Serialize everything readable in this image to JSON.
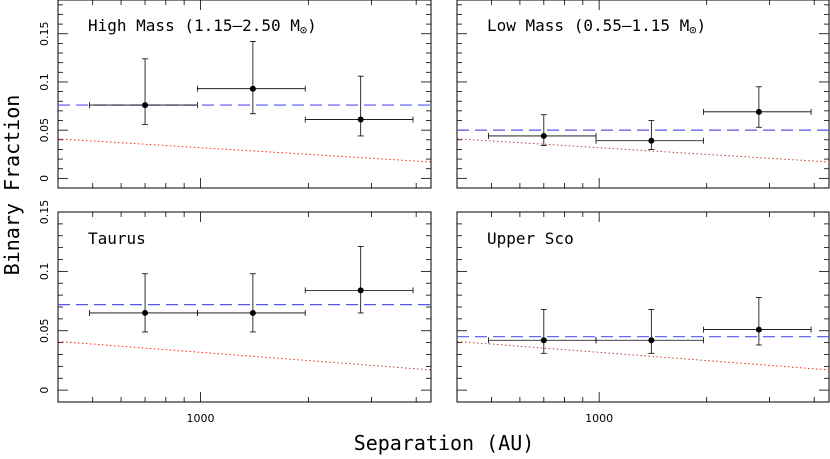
{
  "figure": {
    "xlabel": "Separation (AU)",
    "ylabel": "Binary Fraction"
  },
  "colors": {
    "mean_line": "#5555ee",
    "model_line": "#e03020",
    "points": "#000000"
  },
  "chart_data": [
    {
      "type": "scatter",
      "title": "High Mass (1.15–2.50 M",
      "title_symbol": "⊙",
      "title_close": ")",
      "x_scale": "log",
      "xlim": [
        400,
        4400
      ],
      "ylim": [
        -0.01,
        0.185
      ],
      "yticks": [
        0,
        0.05,
        0.1,
        0.15
      ],
      "ytick_labels": [
        "0",
        "0.05",
        "0.1",
        "0.15"
      ],
      "xticks": [
        1000
      ],
      "xtick_labels": [],
      "points": [
        {
          "x": 700,
          "xlo": 490,
          "xhi": 980,
          "y": 0.076,
          "ylo": 0.056,
          "yhi": 0.124
        },
        {
          "x": 1400,
          "xlo": 980,
          "xhi": 1960,
          "y": 0.093,
          "ylo": 0.067,
          "yhi": 0.142
        },
        {
          "x": 2800,
          "xlo": 1960,
          "xhi": 3920,
          "y": 0.061,
          "ylo": 0.044,
          "yhi": 0.106
        }
      ],
      "mean": 0.076,
      "model": [
        [
          400,
          0.041
        ],
        [
          4400,
          0.017
        ]
      ]
    },
    {
      "type": "scatter",
      "title": "Low Mass (0.55–1.15 M",
      "title_symbol": "⊙",
      "title_close": ")",
      "x_scale": "log",
      "xlim": [
        400,
        4400
      ],
      "ylim": [
        -0.01,
        0.185
      ],
      "yticks": [
        0,
        0.05,
        0.1,
        0.15
      ],
      "ytick_labels": [],
      "xticks": [
        1000
      ],
      "xtick_labels": [],
      "points": [
        {
          "x": 700,
          "xlo": 490,
          "xhi": 980,
          "y": 0.044,
          "ylo": 0.034,
          "yhi": 0.066
        },
        {
          "x": 1400,
          "xlo": 980,
          "xhi": 1960,
          "y": 0.039,
          "ylo": 0.03,
          "yhi": 0.06
        },
        {
          "x": 2800,
          "xlo": 1960,
          "xhi": 3920,
          "y": 0.069,
          "ylo": 0.053,
          "yhi": 0.095
        }
      ],
      "mean": 0.05,
      "model": [
        [
          400,
          0.041
        ],
        [
          4400,
          0.017
        ]
      ]
    },
    {
      "type": "scatter",
      "title": "Taurus",
      "x_scale": "log",
      "xlim": [
        400,
        4400
      ],
      "ylim": [
        -0.01,
        0.15
      ],
      "yticks": [
        0,
        0.05,
        0.1,
        0.15
      ],
      "ytick_labels": [
        "0",
        "0.05",
        "0.1",
        "0.15"
      ],
      "xticks": [
        1000
      ],
      "xtick_labels": [
        "1000"
      ],
      "points": [
        {
          "x": 700,
          "xlo": 490,
          "xhi": 980,
          "y": 0.065,
          "ylo": 0.049,
          "yhi": 0.098
        },
        {
          "x": 1400,
          "xlo": 980,
          "xhi": 1960,
          "y": 0.065,
          "ylo": 0.049,
          "yhi": 0.098
        },
        {
          "x": 2800,
          "xlo": 1960,
          "xhi": 3920,
          "y": 0.084,
          "ylo": 0.065,
          "yhi": 0.121
        }
      ],
      "mean": 0.072,
      "model": [
        [
          400,
          0.041
        ],
        [
          4400,
          0.017
        ]
      ]
    },
    {
      "type": "scatter",
      "title": "Upper Sco",
      "x_scale": "log",
      "xlim": [
        400,
        4400
      ],
      "ylim": [
        -0.01,
        0.15
      ],
      "yticks": [
        0,
        0.05,
        0.1,
        0.15
      ],
      "ytick_labels": [],
      "xticks": [
        1000
      ],
      "xtick_labels": [
        "1000"
      ],
      "points": [
        {
          "x": 700,
          "xlo": 490,
          "xhi": 980,
          "y": 0.042,
          "ylo": 0.031,
          "yhi": 0.068
        },
        {
          "x": 1400,
          "xlo": 980,
          "xhi": 1960,
          "y": 0.042,
          "ylo": 0.031,
          "yhi": 0.068
        },
        {
          "x": 2800,
          "xlo": 1960,
          "xhi": 3920,
          "y": 0.051,
          "ylo": 0.038,
          "yhi": 0.078
        }
      ],
      "mean": 0.045,
      "model": [
        [
          400,
          0.041
        ],
        [
          4400,
          0.017
        ]
      ]
    }
  ]
}
